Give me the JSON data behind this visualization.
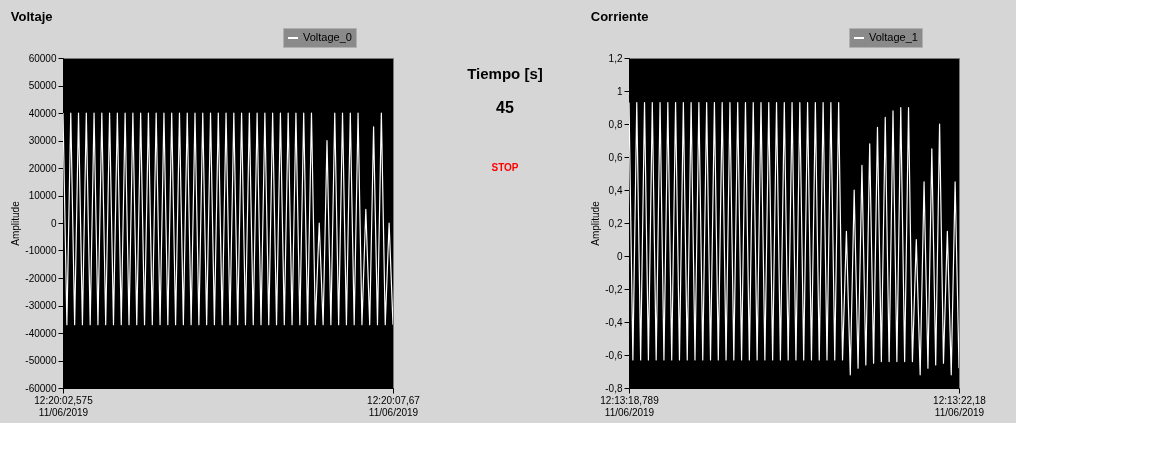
{
  "chart_data": [
    {
      "type": "line",
      "title": "Voltaje",
      "ylabel": "Amplitude",
      "legend": "top right",
      "grid": false,
      "marker": "none",
      "line_style": "solid",
      "categories": [
        "12:20:02,575\n11/06/2019",
        null,
        null,
        null,
        null,
        null,
        null,
        null,
        null,
        null,
        null,
        null,
        null,
        null,
        null,
        null,
        null,
        null,
        null,
        null,
        null,
        null,
        null,
        null,
        null,
        null,
        null,
        null,
        null,
        null,
        null,
        null,
        null,
        null,
        null,
        null,
        null,
        null,
        null,
        null,
        null,
        null,
        null,
        null,
        null,
        null,
        null,
        null,
        null,
        null,
        null,
        null,
        null,
        null,
        null,
        null,
        null,
        null,
        null,
        null,
        null,
        null,
        null,
        null,
        null,
        null,
        null,
        null,
        null,
        null,
        null,
        null,
        null,
        null,
        null,
        null,
        null,
        null,
        null,
        null,
        null,
        null,
        null,
        null,
        null,
        "12:20:07,67\n11/06/2019"
      ],
      "ylim": [
        -60000,
        60000
      ],
      "yticks": [
        -60000,
        -50000,
        -40000,
        -30000,
        -20000,
        -10000,
        0,
        10000,
        20000,
        30000,
        40000,
        50000,
        60000
      ],
      "series": [
        {
          "name": "Voltage_0",
          "color": "#ffffff",
          "values": [
            40000,
            -37000,
            40000,
            -37000,
            40000,
            -37000,
            40000,
            -37000,
            40000,
            -37000,
            40000,
            -37000,
            40000,
            -37000,
            40000,
            -37000,
            40000,
            -37000,
            40000,
            -37000,
            40000,
            -37000,
            40000,
            -37000,
            40000,
            -37000,
            40000,
            -37000,
            40000,
            -37000,
            40000,
            -37000,
            40000,
            -37000,
            40000,
            -37000,
            40000,
            -37000,
            40000,
            -37000,
            40000,
            -37000,
            40000,
            -37000,
            40000,
            -37000,
            40000,
            -37000,
            40000,
            -37000,
            40000,
            -37000,
            40000,
            -37000,
            40000,
            -37000,
            40000,
            -37000,
            40000,
            -37000,
            40000,
            -37000,
            40000,
            -37000,
            40000,
            -37000,
            0,
            -37000,
            30000,
            -37000,
            40000,
            -37000,
            40000,
            -37000,
            40000,
            -37000,
            40000,
            -37000,
            5000,
            -37000,
            35000,
            -37000,
            40000,
            -37000,
            0,
            -37000
          ]
        }
      ]
    },
    {
      "type": "other",
      "annotations": [
        "Tiempo [s]",
        "45",
        "STOP"
      ]
    },
    {
      "type": "line",
      "title": "Corriente",
      "ylabel": "Amplitude",
      "legend": "top right",
      "grid": false,
      "marker": "none",
      "line_style": "solid",
      "categories": [
        "12:13:18,789\n11/06/2019",
        null,
        null,
        null,
        null,
        null,
        null,
        null,
        null,
        null,
        null,
        null,
        null,
        null,
        null,
        null,
        null,
        null,
        null,
        null,
        null,
        null,
        null,
        null,
        null,
        null,
        null,
        null,
        null,
        null,
        null,
        null,
        null,
        null,
        null,
        null,
        null,
        null,
        null,
        null,
        null,
        null,
        null,
        null,
        null,
        null,
        null,
        null,
        null,
        null,
        null,
        null,
        null,
        null,
        null,
        null,
        null,
        null,
        null,
        null,
        null,
        null,
        null,
        null,
        null,
        null,
        null,
        null,
        null,
        null,
        null,
        null,
        null,
        null,
        null,
        null,
        null,
        null,
        null,
        null,
        null,
        null,
        null,
        null,
        null,
        "12:13:22,18\n11/06/2019"
      ],
      "ylim": [
        -0.8,
        1.2
      ],
      "yticks": [
        {
          "value": -0.8,
          "label": "-0,8"
        },
        {
          "value": -0.6,
          "label": "-0,6"
        },
        {
          "value": -0.4,
          "label": "-0,4"
        },
        {
          "value": -0.2,
          "label": "-0,2"
        },
        0,
        {
          "value": 0.2,
          "label": "0,2"
        },
        {
          "value": 0.4,
          "label": "0,4"
        },
        {
          "value": 0.6,
          "label": "0,6"
        },
        {
          "value": 0.8,
          "label": "0,8"
        },
        1,
        {
          "value": 1.2,
          "label": "1,2"
        }
      ],
      "series": [
        {
          "name": "Voltage_1",
          "color": "#ffffff",
          "values": [
            0.93,
            -0.63,
            0.93,
            -0.63,
            0.93,
            -0.63,
            0.93,
            -0.63,
            0.93,
            -0.63,
            0.93,
            -0.63,
            0.93,
            -0.63,
            0.93,
            -0.63,
            0.93,
            -0.63,
            0.93,
            -0.63,
            0.93,
            -0.63,
            0.93,
            -0.63,
            0.93,
            -0.63,
            0.93,
            -0.63,
            0.93,
            -0.63,
            0.93,
            -0.63,
            0.93,
            -0.63,
            0.93,
            -0.63,
            0.93,
            -0.63,
            0.93,
            -0.63,
            0.93,
            -0.63,
            0.93,
            -0.63,
            0.93,
            -0.63,
            0.93,
            -0.63,
            0.93,
            -0.63,
            0.93,
            -0.63,
            0.93,
            -0.63,
            0.93,
            -0.63,
            0.15,
            -0.72,
            0.4,
            -0.68,
            0.55,
            -0.66,
            0.68,
            -0.65,
            0.78,
            -0.64,
            0.84,
            -0.64,
            0.88,
            -0.64,
            0.9,
            -0.64,
            0.9,
            -0.64,
            0.1,
            -0.72,
            0.45,
            -0.68,
            0.65,
            -0.66,
            0.8,
            -0.65,
            0.15,
            -0.72,
            0.45,
            -0.68
          ]
        }
      ]
    }
  ]
}
